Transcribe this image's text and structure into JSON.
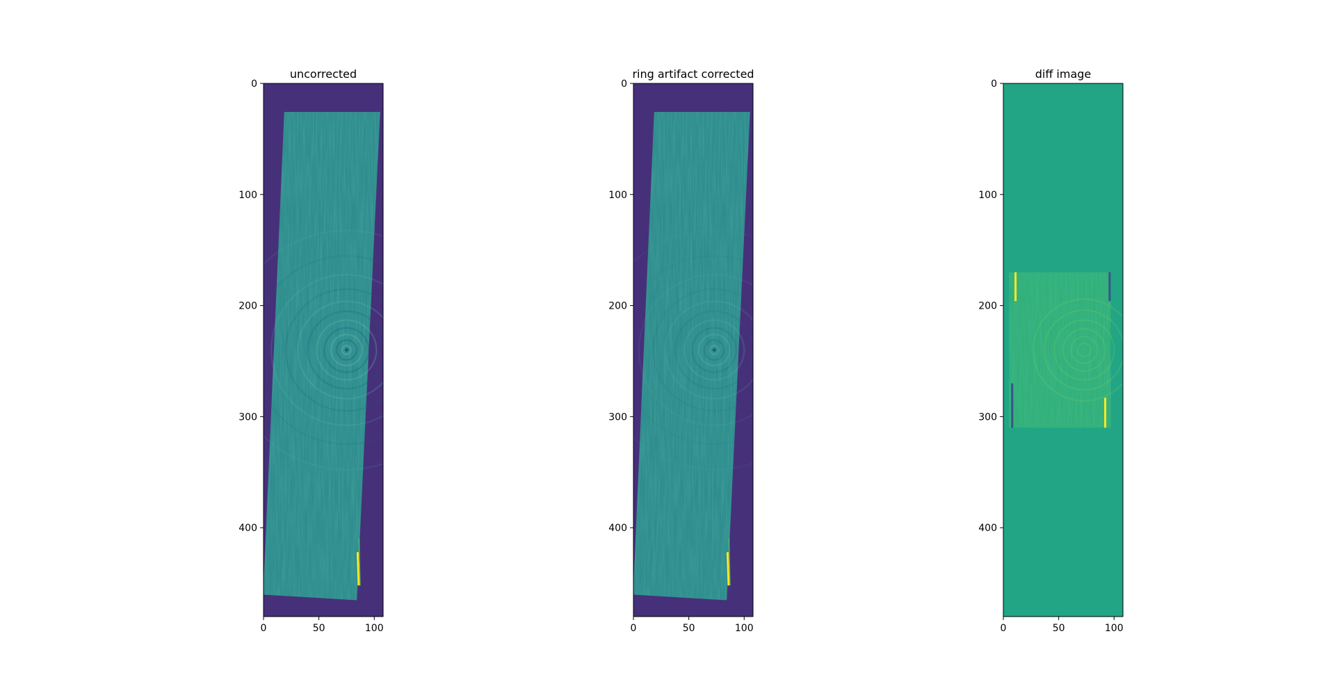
{
  "figure": {
    "background": "#ffffff",
    "colormap": "viridis",
    "colors": {
      "low": "#440154",
      "dark_bg": "#46307a",
      "mid_low": "#3b528b",
      "mid": "#2f8e8d",
      "teal": "#21a585",
      "green": "#5ec962",
      "high": "#fde725",
      "axis": "#000000"
    }
  },
  "chart_data": [
    {
      "type": "heatmap",
      "title": "uncorrected",
      "image_shape": [
        480,
        108
      ],
      "xlim": [
        0,
        108
      ],
      "ylim": [
        480,
        0
      ],
      "xticks": [
        0,
        50,
        100
      ],
      "yticks": [
        0,
        100,
        200,
        300,
        400
      ],
      "xticklabels": [
        "0",
        "50",
        "100"
      ],
      "yticklabels": [
        "0",
        "100",
        "200",
        "300",
        "400"
      ],
      "content": {
        "slab_corners": [
          [
            19,
            26
          ],
          [
            105,
            26
          ],
          [
            84,
            465
          ],
          [
            0,
            460
          ]
        ],
        "ring_center": [
          75,
          240
        ],
        "ring_radii": [
          4,
          9,
          14,
          20,
          27,
          35,
          44,
          55,
          68,
          85,
          108
        ],
        "bright_streak": [
          [
            85,
            422
          ],
          [
            86,
            452
          ]
        ]
      }
    },
    {
      "type": "heatmap",
      "title": "ring artifact corrected",
      "image_shape": [
        480,
        108
      ],
      "xlim": [
        0,
        108
      ],
      "ylim": [
        480,
        0
      ],
      "xticks": [
        0,
        50,
        100
      ],
      "yticks": [
        0,
        100,
        200,
        300,
        400
      ],
      "xticklabels": [
        "0",
        "50",
        "100"
      ],
      "yticklabels": [
        "0",
        "100",
        "200",
        "300",
        "400"
      ],
      "content": {
        "slab_corners": [
          [
            19,
            26
          ],
          [
            105,
            26
          ],
          [
            84,
            465
          ],
          [
            0,
            460
          ]
        ],
        "ring_center": [
          73,
          240
        ],
        "ring_radii": [
          4,
          9,
          14,
          20,
          27,
          35,
          44,
          55,
          68,
          85,
          108
        ],
        "bright_streak": [
          [
            85,
            422
          ],
          [
            86,
            452
          ]
        ]
      }
    },
    {
      "type": "heatmap",
      "title": "diff image",
      "image_shape": [
        480,
        108
      ],
      "xlim": [
        0,
        108
      ],
      "ylim": [
        480,
        0
      ],
      "xticks": [
        0,
        50,
        100
      ],
      "yticks": [
        0,
        100,
        200,
        300,
        400
      ],
      "xticklabels": [
        "0",
        "50",
        "100"
      ],
      "yticklabels": [
        "0",
        "100",
        "200",
        "300",
        "400"
      ],
      "content": {
        "band_y": [
          170,
          310
        ],
        "band_x": [
          5,
          97
        ],
        "bright_lines": [
          [
            [
              11,
              170
            ],
            [
              11,
              196
            ]
          ],
          [
            [
              92,
              283
            ],
            [
              92,
              310
            ]
          ]
        ],
        "dark_lines": [
          [
            [
              96,
              170
            ],
            [
              96,
              196
            ]
          ],
          [
            [
              8,
              270
            ],
            [
              8,
              310
            ]
          ]
        ]
      }
    }
  ]
}
